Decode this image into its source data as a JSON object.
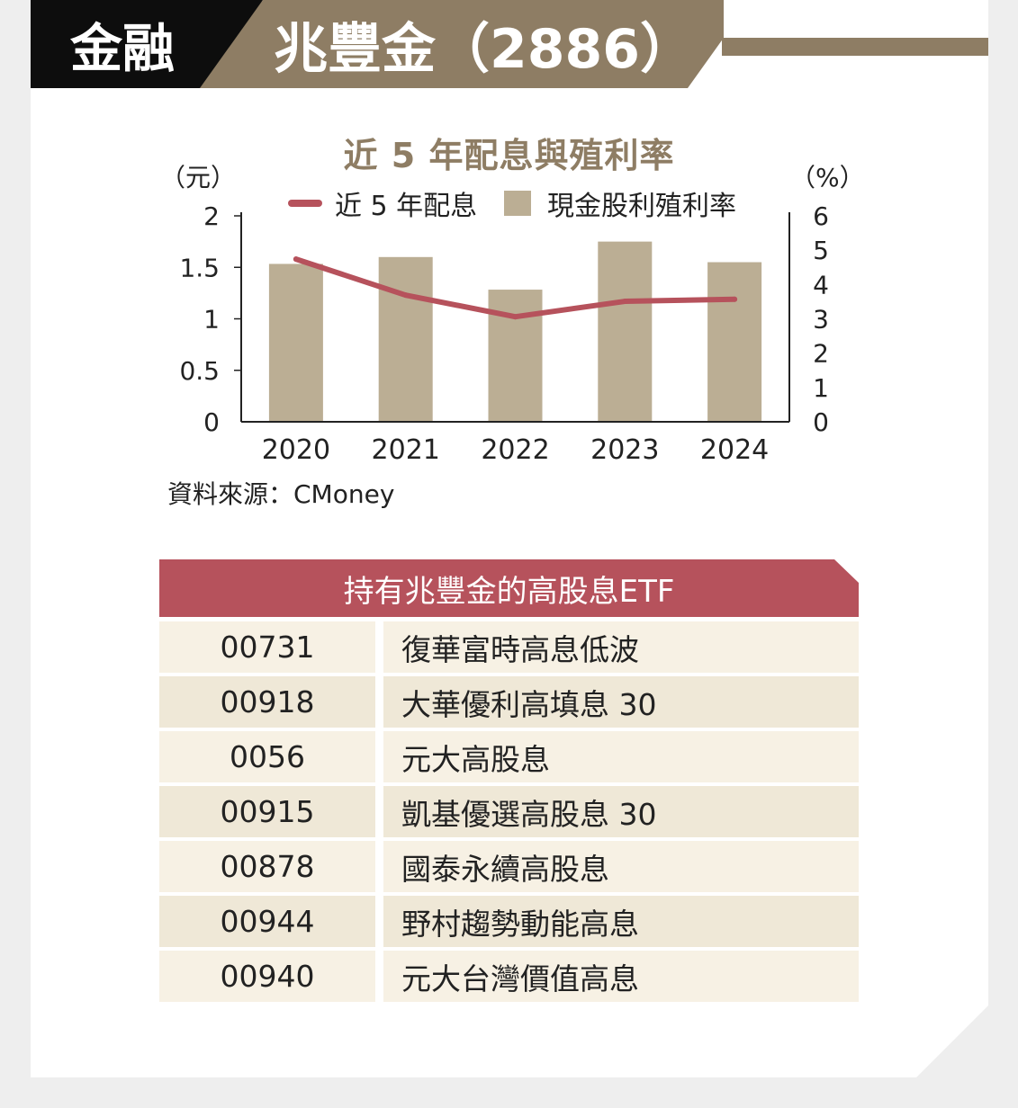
{
  "header": {
    "category": "金融",
    "title": "兆豐金（2886）"
  },
  "colors": {
    "gold": "#8e7d64",
    "bar": "#bbae94",
    "line": "#b6525c",
    "header_black": "#0d0d0d"
  },
  "chart_data": {
    "type": "bar+line",
    "title": "近 5 年配息與殖利率",
    "y_left_unit": "（元）",
    "y_right_unit": "（%）",
    "categories": [
      "2020",
      "2021",
      "2022",
      "2023",
      "2024"
    ],
    "y_left_ticks": [
      "0",
      "0.5",
      "1",
      "1.5",
      "2"
    ],
    "y_right_ticks": [
      "0",
      "1",
      "2",
      "3",
      "4",
      "5",
      "6"
    ],
    "ylim_left": [
      0,
      2
    ],
    "ylim_right": [
      0,
      6
    ],
    "series": [
      {
        "name": "近 5 年配息",
        "type": "line",
        "axis": "left",
        "values": [
          1.58,
          1.23,
          1.02,
          1.17,
          1.19
        ]
      },
      {
        "name": "現金股利殖利率",
        "type": "bar",
        "axis": "right",
        "values": [
          4.6,
          4.8,
          3.85,
          5.25,
          4.65
        ]
      }
    ],
    "source": "資料來源：CMoney"
  },
  "etf_table": {
    "title": "持有兆豐金的高股息ETF",
    "rows": [
      {
        "code": "00731",
        "name": "復華富時高息低波"
      },
      {
        "code": "00918",
        "name": "大華優利高填息 30"
      },
      {
        "code": "0056",
        "name": "元大高股息"
      },
      {
        "code": "00915",
        "name": "凱基優選高股息 30"
      },
      {
        "code": "00878",
        "name": "國泰永續高股息"
      },
      {
        "code": "00944",
        "name": "野村趨勢動能高息"
      },
      {
        "code": "00940",
        "name": "元大台灣價值高息"
      }
    ]
  }
}
